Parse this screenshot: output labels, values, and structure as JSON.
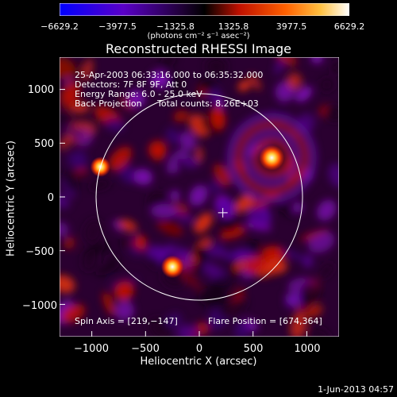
{
  "colorbar": {
    "ticks": [
      "−6629.2",
      "−3977.5",
      "−1325.8",
      "1325.8",
      "3977.5",
      "6629.2"
    ],
    "units_text": "(photons cm⁻² s⁻¹ asec⁻²)",
    "colors": [
      "#0000ff",
      "#7a00d0",
      "#000000",
      "#e02000",
      "#ff8000",
      "#ffffff"
    ]
  },
  "title": "Reconstructed RHESSI Image",
  "info": {
    "time_range": "25-Apr-2003 06:33:16.000 to 06:35:32.000",
    "detectors": "Detectors: 7F 8F 9F, Att 0",
    "energy": "Energy Range: 6.0 - 25.0 keV",
    "method": "Back Projection",
    "counts": "Total counts: 8.26E+03",
    "spin_axis": "Spin Axis = [219,−147]",
    "flare_position": "Flare Position = [674,364]"
  },
  "footer_date": "1-Jun-2013 04:57",
  "chart_data": {
    "type": "heatmap",
    "title": "Reconstructed RHESSI Image",
    "xlabel": "Heliocentric X (arcsec)",
    "ylabel": "Heliocentric Y (arcsec)",
    "xlim": [
      -1300,
      1300
    ],
    "ylim": [
      -1300,
      1300
    ],
    "x_ticks": [
      "−1000",
      "−500",
      "0",
      "500",
      "1000"
    ],
    "y_ticks": [
      "1000",
      "500",
      "0",
      "−500",
      "−1000"
    ],
    "tick_values": [
      -1000,
      -500,
      0,
      500,
      1000
    ],
    "color_range": [
      -6629.2,
      6629.2
    ],
    "solar_disk_radius": 960,
    "sun_center": [
      0,
      0
    ],
    "spin_axis": [
      219,
      -147
    ],
    "flare_position": [
      674,
      364
    ],
    "bright_sources": [
      {
        "x": 674,
        "y": 364,
        "intensity": 6629
      },
      {
        "x": -250,
        "y": -650,
        "intensity": 5500
      },
      {
        "x": -920,
        "y": 280,
        "intensity": 4500
      }
    ]
  }
}
